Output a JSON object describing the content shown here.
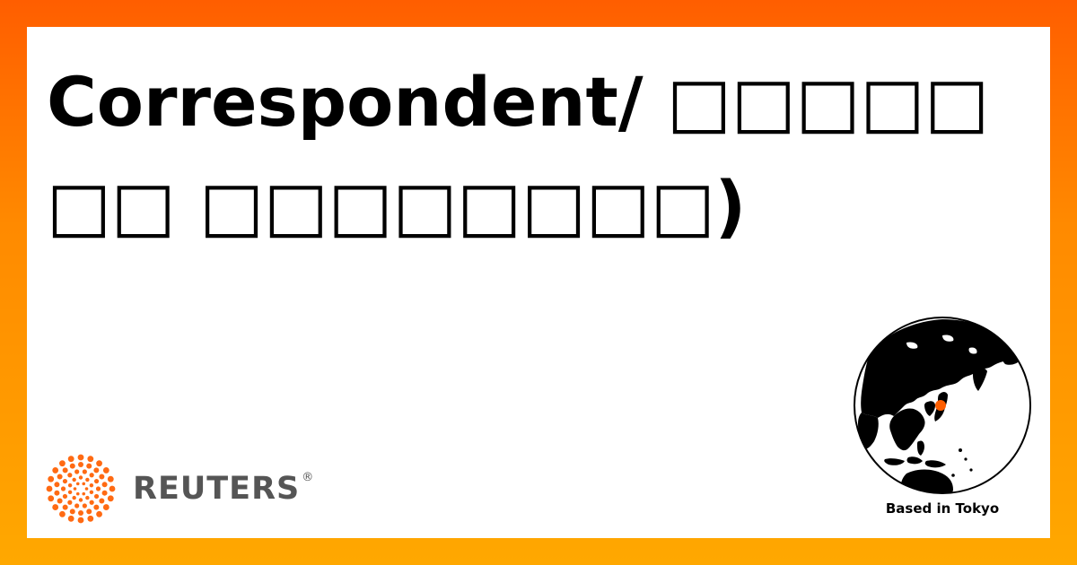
{
  "headline": {
    "text": "Correspondent/ □□□□□□□ □□□□□□□□)"
  },
  "brand": {
    "name": "REUTERS",
    "registered_mark": "®",
    "logo_icon": "reuters-dot-ring-logo",
    "accent_color": "#ff6a13"
  },
  "location": {
    "label": "Based in Tokyo",
    "marker_color": "#ff5e00"
  },
  "colors": {
    "border_gradient_top": "#ff5e00",
    "border_gradient_bottom": "#ffa800",
    "card_background": "#ffffff",
    "headline_color": "#000000",
    "brand_text_color": "#555555"
  }
}
